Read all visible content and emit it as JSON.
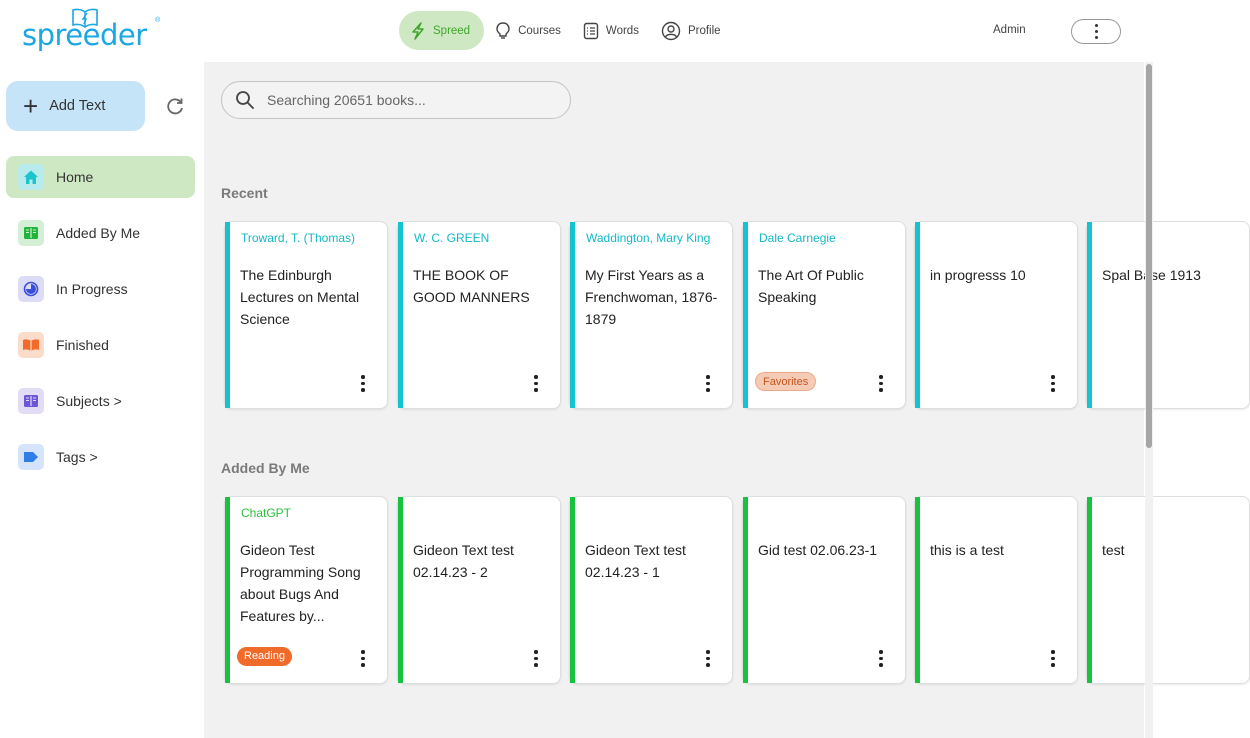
{
  "brand": {
    "logo_text": "spreeder",
    "logo_mark": "®"
  },
  "nav": {
    "items": [
      {
        "label": "Spreed",
        "icon": "lightning-icon",
        "active": true
      },
      {
        "label": "Courses",
        "icon": "lightbulb-icon"
      },
      {
        "label": "Words",
        "icon": "list-icon"
      },
      {
        "label": "Profile",
        "icon": "user-icon"
      }
    ],
    "user_label": "Admin"
  },
  "sidebar": {
    "add_text_label": "Add Text",
    "items": [
      {
        "label": "Home",
        "icon": "home-icon",
        "active": true
      },
      {
        "label": "Added By Me",
        "icon": "book-icon"
      },
      {
        "label": "In Progress",
        "icon": "progress-icon"
      },
      {
        "label": "Finished",
        "icon": "open-book-icon"
      },
      {
        "label": "Subjects >",
        "icon": "book-stack-icon"
      },
      {
        "label": "Tags >",
        "icon": "tag-icon"
      }
    ]
  },
  "search": {
    "placeholder": "Searching 20651 books..."
  },
  "sections": {
    "recent": {
      "title": "Recent",
      "cards": [
        {
          "author": "Troward, T. (Thomas)",
          "title": "The Edinburgh Lectures on Mental Science",
          "badge": ""
        },
        {
          "author": "W. C. GREEN",
          "title": "THE BOOK OF GOOD MANNERS",
          "badge": ""
        },
        {
          "author": "Waddington, Mary King",
          "title": "My First Years as a Frenchwoman, 1876-1879",
          "badge": ""
        },
        {
          "author": "Dale Carnegie",
          "title": "The Art Of Public Speaking",
          "badge": "Favorites"
        },
        {
          "author": "",
          "title": "in progresss 10",
          "badge": ""
        },
        {
          "author": "",
          "title": "Spal Base 1913",
          "badge": ""
        }
      ]
    },
    "added_by_me": {
      "title": "Added By Me",
      "cards": [
        {
          "author": "ChatGPT",
          "title": "Gideon Test Programming Song about Bugs And Features by...",
          "badge": "Reading"
        },
        {
          "author": "",
          "title": "Gideon Text test 02.14.23 - 2",
          "badge": ""
        },
        {
          "author": "",
          "title": "Gideon Text test 02.14.23 - 1",
          "badge": ""
        },
        {
          "author": "",
          "title": "Gid test 02.06.23-1",
          "badge": ""
        },
        {
          "author": "",
          "title": "this is a test",
          "badge": ""
        },
        {
          "author": "",
          "title": "test",
          "badge": ""
        }
      ]
    }
  },
  "colors": {
    "brand_blue": "#1ba7e2",
    "active_green_bg": "#cfe8c4",
    "active_green_text": "#3fa52b",
    "recent_accent": "#13c3cf",
    "added_accent": "#18c23f",
    "reading_badge": "#f06a2a",
    "favorites_badge": "#f6cbb5"
  }
}
